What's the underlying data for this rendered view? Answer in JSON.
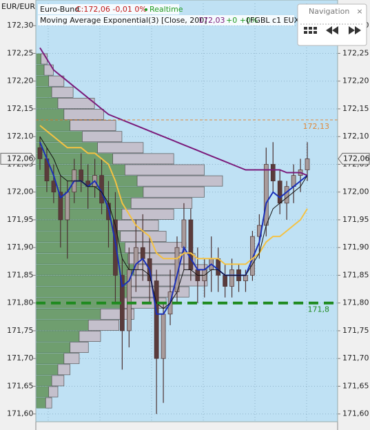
{
  "chart_data": {
    "type": "candlestick",
    "axis_label": "EUR/EUR",
    "symbol": "Euro-Bund",
    "quote": "C:172,06 -0,01 0%",
    "status": "Realtime",
    "source": "{FGBL c1 EUX}",
    "navigation": {
      "title": "Navigation",
      "close": "×"
    },
    "categories": [
      null,
      null,
      null,
      null,
      null,
      null,
      null,
      null,
      null,
      null,
      null,
      null,
      null,
      null,
      null,
      null,
      null,
      null,
      null,
      null,
      null,
      null,
      null,
      null,
      null,
      null,
      null,
      null,
      null,
      null,
      null,
      null,
      null,
      null,
      null,
      null,
      null,
      null,
      null,
      null
    ],
    "ylim": [
      171.586,
      172.34
    ],
    "yticks": [
      {
        "value": 172.3,
        "label": "172,30"
      },
      {
        "value": 172.25,
        "label": "172,25"
      },
      {
        "value": 172.2,
        "label": "172,20"
      },
      {
        "value": 172.15,
        "label": "172,15"
      },
      {
        "value": 172.1,
        "label": "172,10"
      },
      {
        "value": 172.05,
        "label": "172,05"
      },
      {
        "value": 172.0,
        "label": "172,00"
      },
      {
        "value": 171.95,
        "label": "171,95"
      },
      {
        "value": 171.9,
        "label": "171,90"
      },
      {
        "value": 171.85,
        "label": "171,85"
      },
      {
        "value": 171.8,
        "label": "171,80"
      },
      {
        "value": 171.75,
        "label": "171,75"
      },
      {
        "value": 171.7,
        "label": "171,70"
      },
      {
        "value": 171.65,
        "label": "171,65"
      },
      {
        "value": 171.6,
        "label": "171,60"
      }
    ],
    "grid": true,
    "background": "#bfe1f4",
    "last_price": {
      "value": 172.06,
      "label": "172,06"
    },
    "candles": {
      "up_color": "#a89b9b",
      "down_color": "#5a3b3b",
      "open": [
        172.08,
        172.06,
        172.02,
        172.0,
        171.95,
        172.0,
        172.04,
        172.02,
        172.01,
        172.03,
        171.98,
        171.95,
        171.85,
        171.75,
        171.86,
        171.9,
        171.88,
        171.84,
        171.7,
        171.78,
        171.82,
        171.9,
        171.95,
        171.86,
        171.84,
        171.86,
        171.88,
        171.85,
        171.83,
        171.86,
        171.84,
        171.85,
        171.92,
        171.94,
        172.05,
        172.02,
        171.98,
        172.01,
        172.03,
        172.04
      ],
      "high": [
        172.1,
        172.08,
        172.05,
        172.03,
        172.02,
        172.06,
        172.07,
        172.05,
        172.06,
        172.06,
        172.02,
        172.0,
        171.88,
        171.9,
        171.95,
        171.96,
        171.92,
        171.86,
        171.8,
        171.86,
        171.92,
        171.98,
        171.97,
        171.9,
        171.88,
        171.92,
        171.9,
        171.87,
        171.88,
        171.87,
        171.86,
        171.93,
        171.96,
        172.08,
        172.09,
        172.04,
        172.02,
        172.05,
        172.06,
        172.09
      ],
      "low": [
        172.04,
        172.0,
        171.98,
        171.9,
        171.88,
        171.98,
        172.0,
        171.97,
        171.99,
        171.96,
        171.9,
        171.8,
        171.68,
        171.72,
        171.82,
        171.84,
        171.8,
        171.6,
        171.62,
        171.76,
        171.8,
        171.86,
        171.84,
        171.8,
        171.81,
        171.82,
        171.82,
        171.81,
        171.81,
        171.82,
        171.82,
        171.84,
        171.88,
        171.92,
        172.0,
        171.96,
        171.95,
        171.98,
        172.0,
        172.02
      ],
      "close": [
        172.06,
        172.02,
        172.0,
        171.95,
        172.0,
        172.04,
        172.02,
        172.01,
        172.03,
        171.98,
        171.95,
        171.85,
        171.75,
        171.86,
        171.9,
        171.88,
        171.84,
        171.7,
        171.78,
        171.82,
        171.9,
        171.95,
        171.86,
        171.84,
        171.86,
        171.88,
        171.85,
        171.83,
        171.86,
        171.84,
        171.85,
        171.92,
        171.94,
        172.05,
        172.02,
        171.98,
        172.01,
        172.03,
        172.04,
        172.06
      ]
    },
    "series": [
      {
        "name": "Moving Average Exponential(3) [Close, 200]",
        "color": "#7a1a7a",
        "last_value": {
          "value": 172.03,
          "label": "172,03"
        },
        "change": "+0 +0%",
        "values": [
          172.26,
          172.24,
          172.22,
          172.21,
          172.2,
          172.19,
          172.18,
          172.17,
          172.16,
          172.15,
          172.14,
          172.135,
          172.13,
          172.125,
          172.12,
          172.115,
          172.11,
          172.105,
          172.1,
          172.095,
          172.09,
          172.085,
          172.08,
          172.075,
          172.07,
          172.065,
          172.06,
          172.055,
          172.05,
          172.045,
          172.04,
          172.04,
          172.04,
          172.04,
          172.04,
          172.04,
          172.035,
          172.035,
          172.035,
          172.03
        ]
      },
      {
        "color": "#1a2fb8",
        "values": [
          172.09,
          172.06,
          172.03,
          171.99,
          172.0,
          172.02,
          172.02,
          172.01,
          172.02,
          172.0,
          171.97,
          171.91,
          171.83,
          171.84,
          171.87,
          171.88,
          171.86,
          171.78,
          171.78,
          171.8,
          171.85,
          171.9,
          171.88,
          171.86,
          171.86,
          171.87,
          171.86,
          171.85,
          171.85,
          171.85,
          171.85,
          171.88,
          171.91,
          171.98,
          172.0,
          171.99,
          172.0,
          172.01,
          172.02,
          172.03
        ]
      },
      {
        "color": "#f5c242",
        "values": [
          172.12,
          172.11,
          172.1,
          172.09,
          172.08,
          172.08,
          172.08,
          172.07,
          172.07,
          172.06,
          172.05,
          172.02,
          171.98,
          171.96,
          171.94,
          171.93,
          171.92,
          171.89,
          171.88,
          171.88,
          171.88,
          171.89,
          171.89,
          171.88,
          171.88,
          171.88,
          171.88,
          171.87,
          171.87,
          171.87,
          171.87,
          171.88,
          171.89,
          171.91,
          171.92,
          171.92,
          171.93,
          171.94,
          171.95,
          171.97
        ]
      },
      {
        "color": "#111111",
        "values": [
          172.1,
          172.08,
          172.06,
          172.03,
          172.02,
          172.02,
          172.02,
          172.01,
          172.01,
          172.0,
          171.98,
          171.94,
          171.88,
          171.86,
          171.86,
          171.86,
          171.85,
          171.8,
          171.79,
          171.8,
          171.82,
          171.86,
          171.86,
          171.85,
          171.85,
          171.86,
          171.86,
          171.85,
          171.85,
          171.85,
          171.85,
          171.87,
          171.89,
          171.94,
          171.97,
          171.98,
          171.99,
          172.0,
          172.01,
          172.03
        ]
      }
    ],
    "profile": {
      "colors": [
        "#6f9e6f",
        "#c4c0cc"
      ],
      "levels": [
        171.62,
        171.64,
        171.66,
        171.68,
        171.7,
        171.72,
        171.74,
        171.76,
        171.78,
        171.8,
        171.82,
        171.84,
        171.86,
        171.88,
        171.9,
        171.92,
        171.94,
        171.96,
        171.98,
        172.0,
        172.02,
        172.04,
        172.06,
        172.08,
        172.1,
        172.12,
        172.14,
        172.16,
        172.18,
        172.2,
        172.22,
        172.24
      ],
      "values": [
        6,
        8,
        10,
        14,
        18,
        22,
        28,
        34,
        42,
        55,
        60,
        62,
        64,
        60,
        58,
        55,
        52,
        56,
        62,
        70,
        66,
        58,
        50,
        40,
        30,
        22,
        18,
        14,
        10,
        8,
        5,
        3
      ],
      "values2": [
        4,
        6,
        8,
        8,
        10,
        12,
        14,
        20,
        22,
        30,
        40,
        50,
        48,
        44,
        40,
        30,
        28,
        34,
        40,
        40,
        56,
        52,
        40,
        30,
        26,
        30,
        26,
        24,
        14,
        10,
        6,
        4
      ]
    },
    "hlines": [
      {
        "value": 172.13,
        "label": "172,13",
        "color": "#e0893a",
        "style": "thin"
      },
      {
        "value": 171.8,
        "label": "171,8",
        "color": "#1f8a1f",
        "style": "thick"
      }
    ]
  }
}
